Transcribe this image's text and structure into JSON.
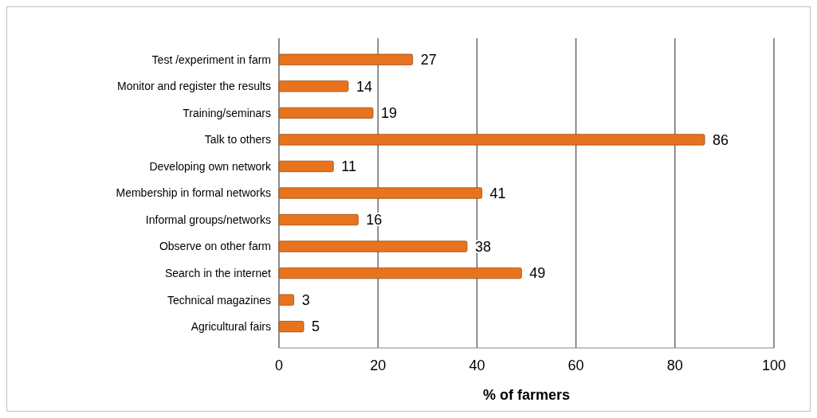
{
  "chart_data": {
    "type": "bar",
    "orientation": "horizontal",
    "xlabel": "% of farmers",
    "categories": [
      "Test /experiment in farm",
      "Monitor and register the results",
      "Training/seminars",
      "Talk to others",
      "Developing own network",
      "Membership in  formal networks",
      "Informal groups/networks",
      "Observe on other farm",
      "Search in the internet",
      "Technical magazines",
      "Agricultural fairs"
    ],
    "values": [
      27,
      14,
      19,
      86,
      11,
      41,
      16,
      38,
      49,
      3,
      5
    ],
    "color": "#e8731e",
    "xlim": [
      0,
      100
    ],
    "xticks": [
      0,
      20,
      40,
      60,
      80,
      100
    ],
    "grid": "x",
    "data_labels": true
  }
}
